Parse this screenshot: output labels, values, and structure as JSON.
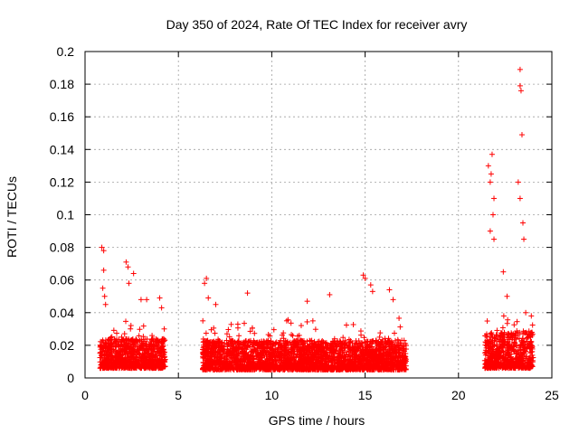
{
  "chart_data": {
    "type": "scatter",
    "title": "Day 350 of 2024, Rate Of TEC Index for receiver avry",
    "xlabel": "GPS time / hours",
    "ylabel": "ROTI / TECUs",
    "xlim": [
      0,
      25
    ],
    "ylim": [
      0,
      0.2
    ],
    "x_ticks": [
      "0",
      "5",
      "10",
      "15",
      "20",
      "25"
    ],
    "y_ticks": [
      "0",
      "0.02",
      "0.04",
      "0.06",
      "0.08",
      "0.1",
      "0.12",
      "0.14",
      "0.16",
      "0.18",
      "0.2"
    ],
    "grid": true,
    "marker": "+",
    "series_color": "#ff0000",
    "series": [
      {
        "segments": [
          {
            "x_start": 0.8,
            "x_end": 4.3,
            "base": 0.006,
            "spread": 0.018
          },
          {
            "x_start": 6.3,
            "x_end": 17.2,
            "base": 0.005,
            "spread": 0.018
          },
          {
            "x_start": 21.4,
            "x_end": 24.0,
            "base": 0.006,
            "spread": 0.022
          }
        ],
        "x": [
          0.9,
          1.0,
          1.0,
          0.95,
          1.05,
          1.1,
          2.2,
          2.3,
          2.35,
          2.6,
          3.0,
          3.3,
          4.0,
          4.1,
          6.4,
          6.5,
          6.6,
          7.0,
          8.7,
          10.8,
          11.9,
          13.1,
          14.9,
          15.0,
          15.3,
          15.4,
          16.3,
          16.5,
          21.6,
          21.7,
          21.8,
          21.9,
          21.75,
          21.85,
          21.7,
          21.9,
          22.4,
          22.6,
          23.3,
          23.3,
          23.35,
          23.4,
          23.2,
          23.3,
          23.45,
          23.5,
          23.6,
          23.9
        ],
        "y": [
          0.08,
          0.078,
          0.066,
          0.055,
          0.05,
          0.045,
          0.071,
          0.068,
          0.058,
          0.064,
          0.048,
          0.048,
          0.049,
          0.043,
          0.058,
          0.061,
          0.049,
          0.045,
          0.052,
          0.035,
          0.047,
          0.051,
          0.063,
          0.061,
          0.057,
          0.053,
          0.054,
          0.048,
          0.13,
          0.12,
          0.137,
          0.11,
          0.125,
          0.1,
          0.09,
          0.085,
          0.065,
          0.05,
          0.189,
          0.179,
          0.176,
          0.149,
          0.12,
          0.11,
          0.095,
          0.085,
          0.04,
          0.038
        ]
      }
    ]
  }
}
